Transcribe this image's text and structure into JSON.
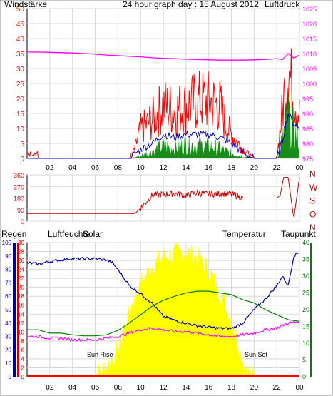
{
  "colors": {
    "wind": "#ff0000",
    "gust_green": "#008000",
    "wind_avg": "#0000c0",
    "pressure": "#ff00ff",
    "direction": "#cc0000",
    "humidity": "#0000a0",
    "temperature": "#008000",
    "dewpoint": "#ff00ff",
    "solar": "#ffff00",
    "rain": "#ff0000",
    "axis_green": "#008000",
    "axis_red": "#cc0000",
    "axis_blue": "#0000a0",
    "axis_solar": "#cccc00"
  },
  "chart_data": [
    {
      "type": "line",
      "title": "24 hour graph day : 15 August 2012",
      "left_axis_label": "Windstärke",
      "right_axis_label": "Luftdruck",
      "ylim_left": [
        0,
        50
      ],
      "ylim_right": [
        975,
        1025
      ],
      "left_ticks": [
        "0",
        "5",
        "10",
        "15",
        "20",
        "25",
        "30",
        "35",
        "40",
        "45",
        "50"
      ],
      "right_ticks": [
        "975",
        "980",
        "985",
        "990",
        "995",
        "1000",
        "1005",
        "1010",
        "1015",
        "1020",
        "1025"
      ],
      "x_ticks": [
        "02",
        "04",
        "06",
        "08",
        "10",
        "12",
        "14",
        "16",
        "18",
        "20",
        "22",
        "00"
      ],
      "grid": true,
      "series": [
        {
          "name": "Windstärke",
          "x": [
            0,
            0.9,
            1,
            5.5,
            6,
            9,
            9.5,
            10,
            11,
            12,
            13,
            14,
            15,
            16,
            17,
            17.5,
            18,
            19,
            19.5,
            20,
            21,
            22,
            22.5,
            23,
            23.3,
            23.6,
            24
          ],
          "y": [
            2,
            2,
            0,
            0,
            0,
            0,
            4,
            12,
            16,
            22,
            20,
            22,
            24,
            24,
            22,
            14,
            10,
            4,
            2,
            0,
            0,
            0,
            20,
            40,
            30,
            25,
            18
          ]
        },
        {
          "name": "",
          "x": [
            0,
            9,
            10,
            11,
            12,
            13,
            14,
            15,
            16,
            17,
            18,
            19,
            20,
            22,
            22.5,
            23,
            23.4,
            24
          ],
          "y": [
            0,
            0,
            1,
            3,
            5,
            4,
            6,
            5,
            5,
            4,
            2,
            1,
            0,
            0,
            8,
            18,
            12,
            8
          ]
        },
        {
          "name": "",
          "x": [
            0,
            9,
            10,
            11,
            12,
            13,
            14,
            15,
            16,
            17,
            18,
            19,
            20,
            22,
            22.5,
            23,
            23.4,
            24
          ],
          "y": [
            0,
            0,
            3,
            5,
            8,
            7,
            8,
            8,
            8,
            7,
            5,
            2,
            0,
            0,
            6,
            15,
            12,
            10
          ]
        },
        {
          "name": "Luftdruck",
          "x": [
            0,
            1,
            2,
            3,
            4,
            5,
            6,
            7,
            8,
            9,
            10,
            11,
            12,
            13,
            14,
            15,
            16,
            17,
            18,
            19,
            20,
            21,
            22,
            22.5,
            23,
            23.5,
            24
          ],
          "y": [
            1010.5,
            1010.5,
            1010.4,
            1010.3,
            1010.2,
            1010,
            1009.8,
            1009.5,
            1009.3,
            1009.1,
            1008.9,
            1008.6,
            1008.4,
            1008.3,
            1008.1,
            1008,
            1007.9,
            1007.8,
            1007.8,
            1007.8,
            1007.9,
            1008,
            1008.3,
            1008,
            1010,
            1008.5,
            1009.5
          ]
        }
      ]
    },
    {
      "type": "line",
      "title": "",
      "ylim": [
        0,
        360
      ],
      "left_ticks": [
        "0",
        "90",
        "180",
        "270",
        "360"
      ],
      "right_labels": [
        "N",
        "W",
        "S",
        "O",
        "N"
      ],
      "x_ticks": [],
      "grid": true,
      "series": [
        {
          "name": "Windrichtung",
          "x": [
            0,
            8.5,
            9,
            9.5,
            10,
            11,
            12,
            13,
            14,
            15,
            16,
            17,
            18,
            19,
            20,
            21,
            22,
            22.3,
            22.6,
            23,
            23.5,
            24
          ],
          "y": [
            60,
            60,
            60,
            60,
            100,
            200,
            210,
            215,
            200,
            220,
            210,
            215,
            210,
            180,
            180,
            180,
            180,
            200,
            340,
            340,
            20,
            340
          ]
        }
      ]
    },
    {
      "type": "line",
      "left_axis_label": "Regen",
      "humidity_label": "Luftfeuchte",
      "solar_label": "Solar",
      "temperature_label": "Temperatur",
      "dewpoint_label": "Taupunkt",
      "humidity_ticks": [
        "0",
        "10",
        "20",
        "30",
        "40",
        "50",
        "60",
        "70",
        "80",
        "90",
        "100"
      ],
      "rain_ticks": [
        "0",
        "2",
        "4",
        "6",
        "8",
        "10",
        "12",
        "14",
        "16",
        "18",
        "20",
        "22",
        "24",
        "26",
        "28",
        "30"
      ],
      "temp_ticks": [
        "0",
        "5",
        "10",
        "15",
        "20",
        "25",
        "30",
        "35",
        "40"
      ],
      "ylim_humidity": [
        0,
        100
      ],
      "ylim_temperature": [
        0,
        40
      ],
      "x_ticks": [
        "02",
        "04",
        "06",
        "08",
        "10",
        "12",
        "14",
        "16",
        "18",
        "20",
        "22",
        "00"
      ],
      "annotations": [
        "Sun Rise",
        "Sun Set"
      ],
      "grid": true,
      "series": [
        {
          "name": "Luftfeuchte",
          "x": [
            0,
            1,
            2,
            4,
            6,
            7,
            7.5,
            8,
            9,
            10,
            11,
            12,
            13,
            14,
            15,
            16,
            17,
            18,
            19,
            20,
            21,
            22,
            22.5,
            23,
            23.5,
            24
          ],
          "y": [
            85,
            84,
            86,
            88,
            88,
            87,
            85,
            80,
            68,
            62,
            55,
            45,
            42,
            40,
            38,
            37,
            36,
            36,
            40,
            50,
            58,
            68,
            75,
            68,
            90,
            93
          ]
        },
        {
          "name": "Temperatur",
          "x": [
            0,
            1,
            2,
            3,
            4,
            5,
            6,
            7,
            8,
            9,
            10,
            11,
            12,
            13,
            14,
            15,
            16,
            17,
            18,
            19,
            20,
            21,
            22,
            23,
            24
          ],
          "y": [
            14,
            14,
            13,
            13,
            12.5,
            12.2,
            12.2,
            12.5,
            13.8,
            16,
            18.5,
            21,
            22.8,
            24,
            25,
            25.5,
            25.5,
            25,
            24.5,
            23,
            22,
            20,
            18.5,
            17,
            16.5
          ]
        },
        {
          "name": "Taupunkt",
          "x": [
            0,
            1,
            2,
            3,
            4,
            5,
            6,
            7,
            8,
            9,
            10,
            11,
            12,
            13,
            14,
            15,
            16,
            17,
            18,
            19,
            20,
            21,
            22,
            23,
            24
          ],
          "y": [
            12,
            12,
            11.5,
            11.5,
            11,
            11,
            11,
            11.5,
            12,
            13,
            14,
            14.5,
            14,
            13.5,
            13.5,
            13,
            12.5,
            12,
            12,
            12.5,
            13,
            14,
            14.5,
            16,
            16.5
          ]
        },
        {
          "name": "Solar",
          "x": [
            0,
            5.5,
            6,
            7,
            8,
            9,
            10,
            11,
            12,
            13,
            14,
            15,
            16,
            17,
            18,
            19,
            19.5,
            20,
            24
          ],
          "y": [
            0,
            0,
            1,
            5,
            12,
            30,
            42,
            50,
            54,
            55,
            56,
            54,
            48,
            38,
            26,
            8,
            2,
            0,
            0
          ]
        },
        {
          "name": "Regen",
          "x": [
            0,
            24
          ],
          "y": [
            0,
            0
          ]
        }
      ]
    }
  ]
}
